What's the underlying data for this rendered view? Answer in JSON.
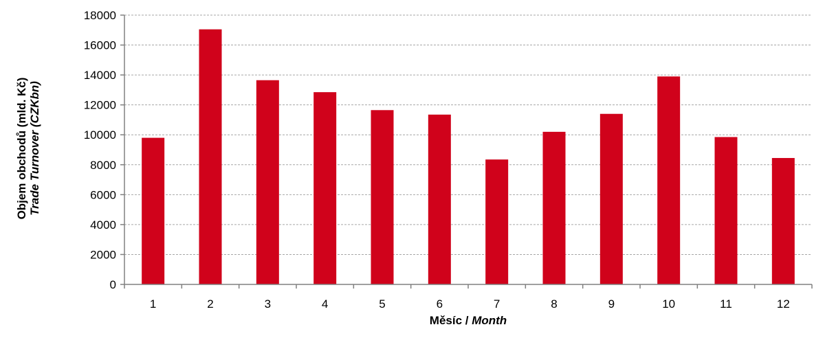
{
  "chart_data": {
    "type": "bar",
    "categories": [
      "1",
      "2",
      "3",
      "4",
      "5",
      "6",
      "7",
      "8",
      "9",
      "10",
      "11",
      "12"
    ],
    "values": [
      9800,
      17050,
      13650,
      12850,
      11650,
      11350,
      8350,
      10200,
      11400,
      13900,
      9850,
      8450
    ],
    "ylim": [
      0,
      18000
    ],
    "yticks": [
      "0",
      "2000",
      "4000",
      "6000",
      "8000",
      "10000",
      "12000",
      "14000",
      "16000",
      "18000"
    ],
    "xlabel": {
      "main": "Měsíc / ",
      "italic": "Month"
    },
    "ylabel": {
      "line1": "Objem obchodů (mld. Kč)",
      "line2": "Trade Turnover (CZKbn)"
    },
    "grid": true,
    "legend": "none",
    "bar_color": "#d0021b"
  }
}
